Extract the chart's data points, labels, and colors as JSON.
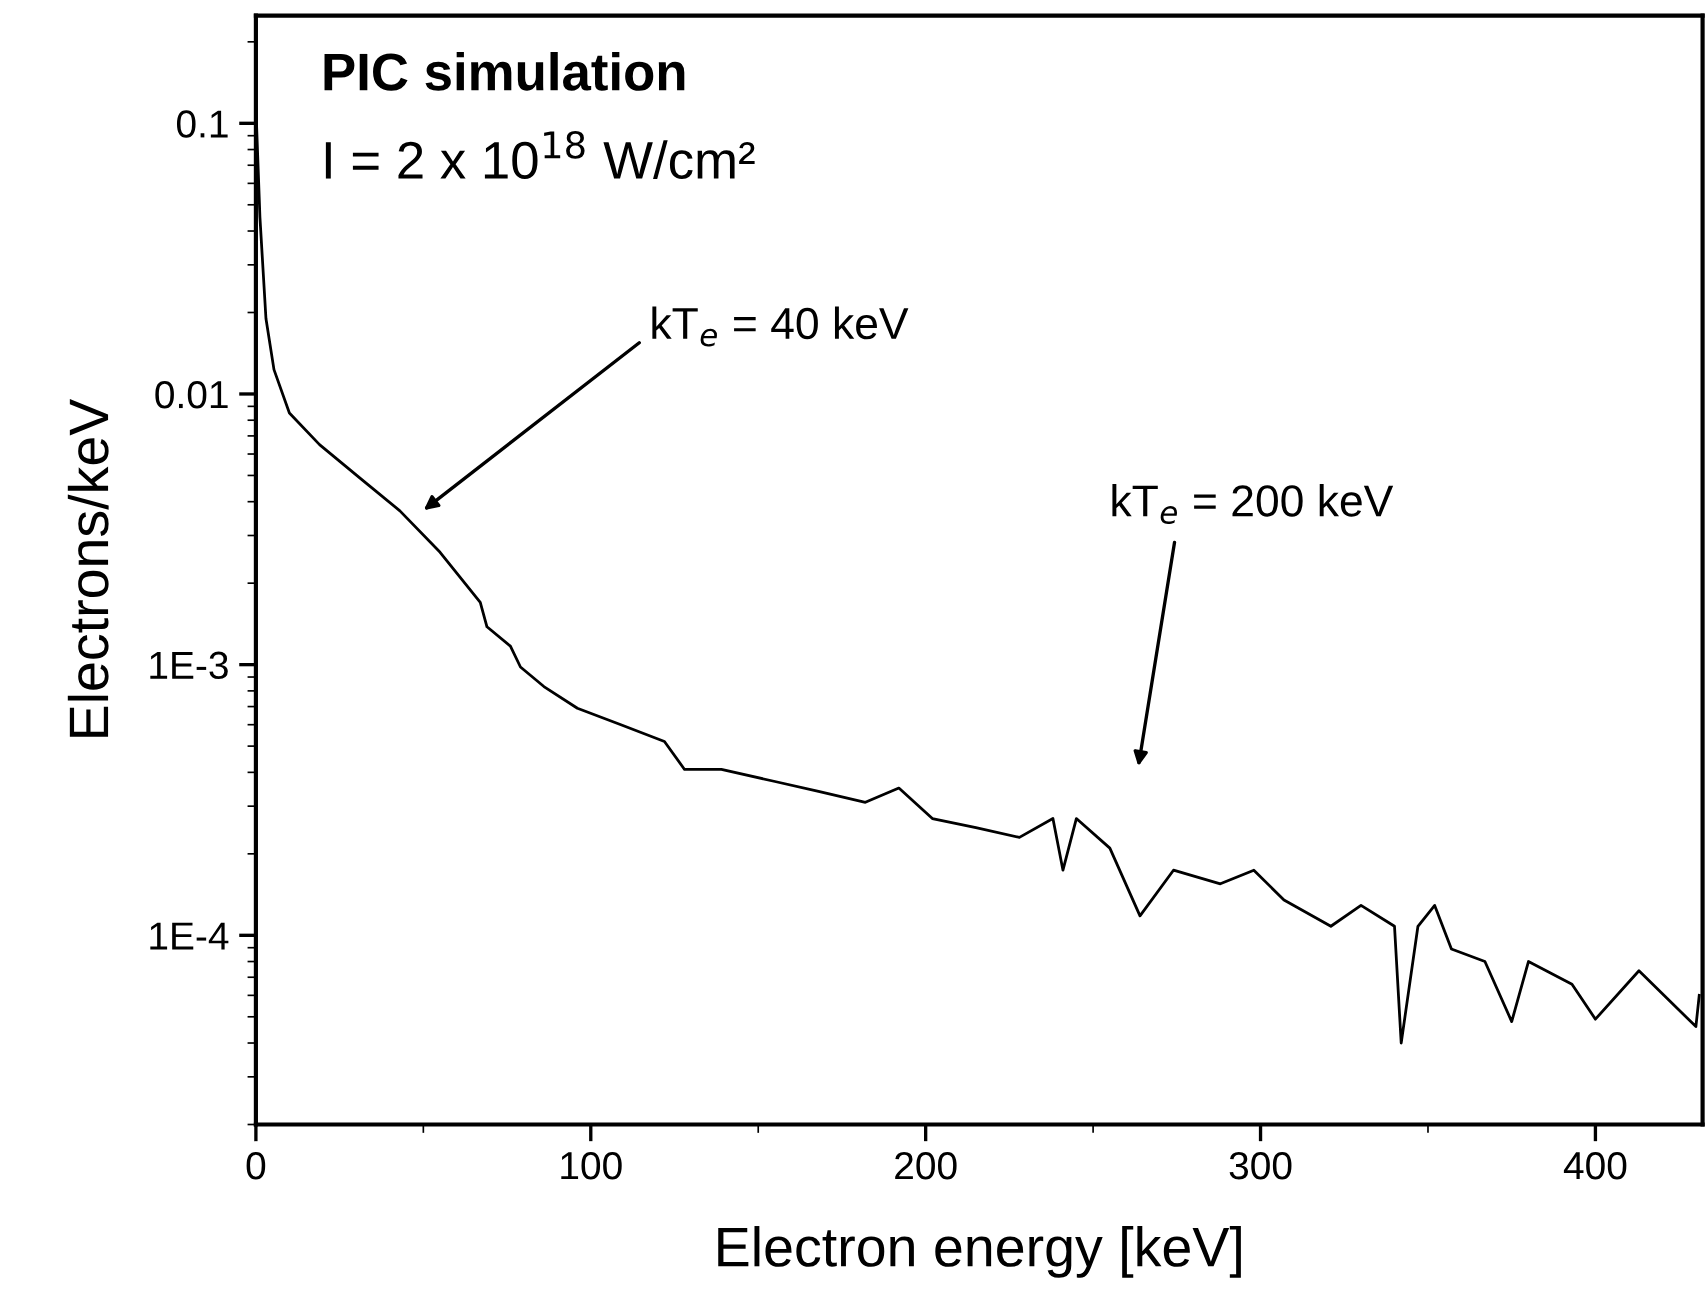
{
  "chart_data": {
    "type": "line",
    "title": "PIC simulation",
    "subtitle": "I = 2 x 10$^{18}$ W/cm²",
    "xlabel": "Electron energy [keV]",
    "ylabel": "Electrons/keV",
    "log": "y",
    "xlim": [
      0,
      432
    ],
    "ylim": [
      2e-05,
      0.25
    ],
    "xticks": [
      0,
      100,
      200,
      300,
      400
    ],
    "yticks": [
      {
        "value": 0.0001,
        "label": "1E-4"
      },
      {
        "value": 0.001,
        "label": "1E-3"
      },
      0.01,
      0.1
    ],
    "marker": "none",
    "line_style": "solid",
    "annotations": [
      "kT$_{e}$ = 40 keV",
      "kT$_{e}$ = 200 keV"
    ],
    "series": [
      {
        "color": "#000000",
        "x": [
          0,
          1.2,
          3,
          5.4,
          10,
          19,
          31,
          43,
          55,
          67,
          69,
          76,
          79,
          86,
          96,
          109,
          122,
          128,
          139,
          155,
          168,
          182,
          192,
          202,
          215,
          228,
          238,
          241,
          245,
          255,
          264,
          274,
          288,
          298,
          307,
          321,
          330,
          340,
          342,
          347,
          352,
          357,
          367,
          375,
          380,
          393,
          400,
          413,
          430,
          431
        ],
        "values": [
          0.115,
          0.045,
          0.019,
          0.0123,
          0.0085,
          0.0065,
          0.0049,
          0.0037,
          0.0026,
          0.0017,
          0.00138,
          0.00117,
          0.00098,
          0.00083,
          0.00069,
          0.0006,
          0.00052,
          0.00041,
          0.00041,
          0.00037,
          0.00034,
          0.00031,
          0.00035,
          0.00027,
          0.00025,
          0.00023,
          0.00027,
          0.000174,
          0.00027,
          0.00021,
          0.000118,
          0.000174,
          0.000155,
          0.000174,
          0.000135,
          0.000108,
          0.000129,
          0.000108,
          4e-05,
          0.000108,
          0.000129,
          8.9e-05,
          8e-05,
          4.8e-05,
          8e-05,
          6.6e-05,
          4.9e-05,
          7.4e-05,
          4.6e-05,
          6e-05
        ]
      }
    ]
  }
}
